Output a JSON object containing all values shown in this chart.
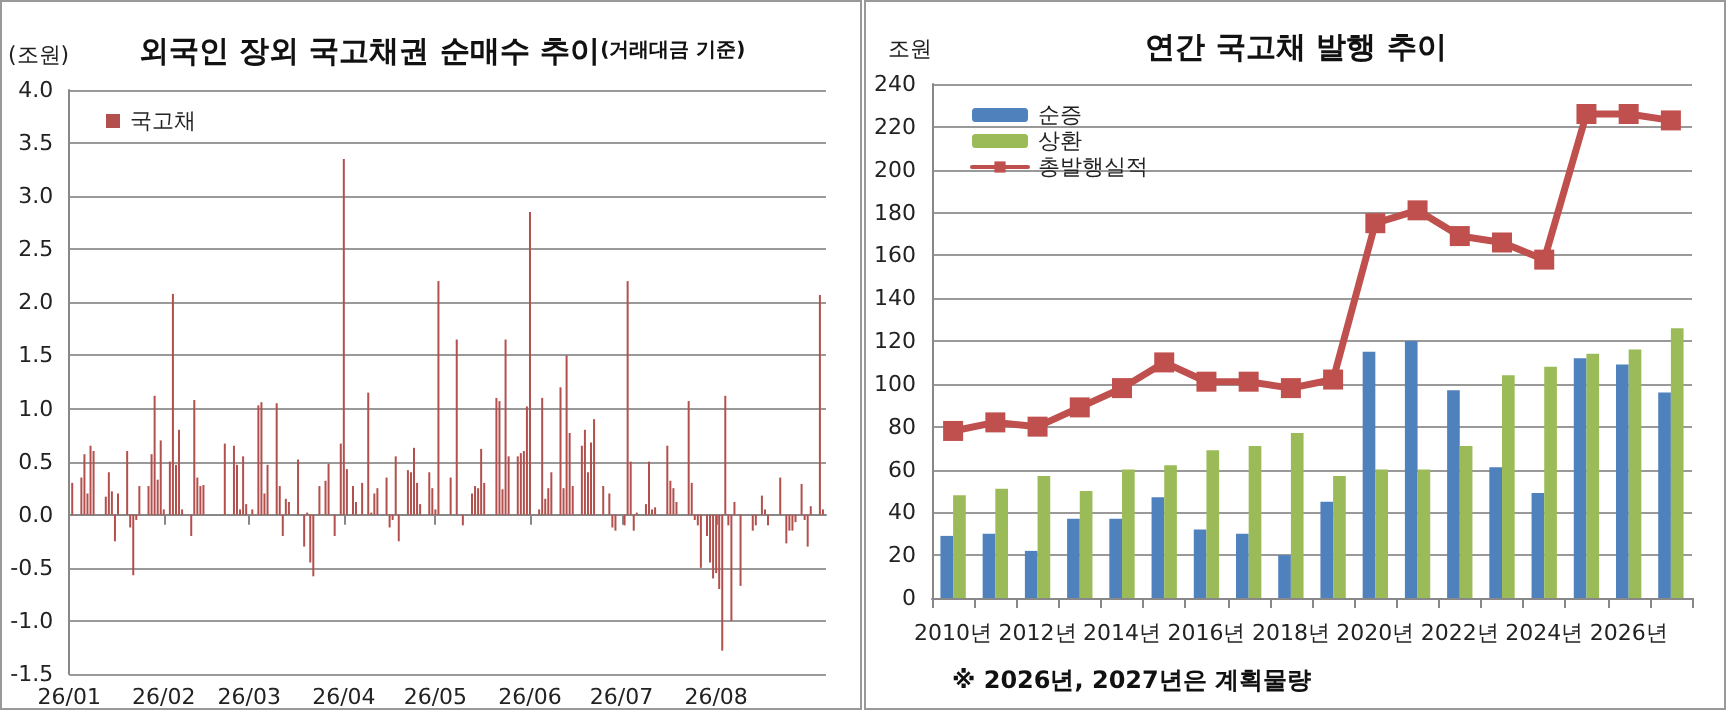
{
  "chart_data": [
    {
      "type": "bar",
      "title": "외국인 장외 국고채권 순매수 추이",
      "subtitle": "(거래대금 기준)",
      "ylabel": "(조원)",
      "x": [
        "2026-01-02",
        "2026-01-05",
        "2026-01-06",
        "2026-01-07",
        "2026-01-08",
        "2026-01-09",
        "2026-01-13",
        "2026-01-14",
        "2026-01-15",
        "2026-01-16",
        "2026-01-17",
        "2026-01-20",
        "2026-01-21",
        "2026-01-22",
        "2026-01-23",
        "2026-01-24",
        "2026-01-27",
        "2026-01-28",
        "2026-01-29",
        "2026-01-30",
        "2026-01-31",
        "2026-02-01",
        "2026-02-03",
        "2026-02-04",
        "2026-02-05",
        "2026-02-06",
        "2026-02-07",
        "2026-02-10",
        "2026-02-11",
        "2026-02-12",
        "2026-02-13",
        "2026-02-14",
        "2026-02-21",
        "2026-02-24",
        "2026-02-25",
        "2026-02-26",
        "2026-02-27",
        "2026-02-28",
        "2026-03-02",
        "2026-03-04",
        "2026-03-05",
        "2026-03-06",
        "2026-03-07",
        "2026-03-10",
        "2026-03-11",
        "2026-03-12",
        "2026-03-13",
        "2026-03-14",
        "2026-03-17",
        "2026-03-19",
        "2026-03-20",
        "2026-03-21",
        "2026-03-22",
        "2026-03-24",
        "2026-03-26",
        "2026-03-27",
        "2026-03-29",
        "2026-03-31",
        "2026-04-01",
        "2026-04-02",
        "2026-04-04",
        "2026-04-05",
        "2026-04-07",
        "2026-04-09",
        "2026-04-10",
        "2026-04-11",
        "2026-04-12",
        "2026-04-15",
        "2026-04-16",
        "2026-04-17",
        "2026-04-18",
        "2026-04-19",
        "2026-04-22",
        "2026-04-23",
        "2026-04-24",
        "2026-04-25",
        "2026-04-26",
        "2026-04-29",
        "2026-04-30",
        "2026-05-01",
        "2026-05-02",
        "2026-05-06",
        "2026-05-08",
        "2026-05-10",
        "2026-05-13",
        "2026-05-14",
        "2026-05-15",
        "2026-05-16",
        "2026-05-17",
        "2026-05-21",
        "2026-05-22",
        "2026-05-23",
        "2026-05-24",
        "2026-05-25",
        "2026-05-28",
        "2026-05-29",
        "2026-05-30",
        "2026-05-31",
        "2026-06-01",
        "2026-06-04",
        "2026-06-05",
        "2026-06-06",
        "2026-06-07",
        "2026-06-08",
        "2026-06-11",
        "2026-06-12",
        "2026-06-13",
        "2026-06-14",
        "2026-06-15",
        "2026-06-18",
        "2026-06-19",
        "2026-06-20",
        "2026-06-21",
        "2026-06-22",
        "2026-06-25",
        "2026-06-27",
        "2026-06-28",
        "2026-06-29",
        "2026-07-02",
        "2026-07-03",
        "2026-07-04",
        "2026-07-05",
        "2026-07-06",
        "2026-07-09",
        "2026-07-10",
        "2026-07-11",
        "2026-07-12",
        "2026-07-16",
        "2026-07-17",
        "2026-07-18",
        "2026-07-19",
        "2026-07-23",
        "2026-07-24",
        "2026-07-25",
        "2026-07-26",
        "2026-07-27",
        "2026-07-29",
        "2026-07-30",
        "2026-07-31",
        "2026-08-01",
        "2026-08-02",
        "2026-08-03",
        "2026-08-04",
        "2026-08-05",
        "2026-08-06",
        "2026-08-07",
        "2026-08-09",
        "2026-08-13",
        "2026-08-14",
        "2026-08-16",
        "2026-08-17",
        "2026-08-18",
        "2026-08-22",
        "2026-08-24",
        "2026-08-25",
        "2026-08-26",
        "2026-08-27",
        "2026-08-29",
        "2026-08-30",
        "2026-08-31",
        "2026-09-01",
        "2026-09-04",
        "2026-09-05"
      ],
      "series": [
        {
          "name": "국고채",
          "color": "#b3504d",
          "values": [
            0.3,
            0.35,
            0.57,
            0.2,
            0.65,
            0.6,
            0.17,
            0.4,
            0.22,
            -0.25,
            0.2,
            0.6,
            -0.12,
            -0.57,
            -0.05,
            0.27,
            0.27,
            0.57,
            1.12,
            0.33,
            0.7,
            0.05,
            0.5,
            2.08,
            0.47,
            0.8,
            0.05,
            -0.2,
            1.08,
            0.35,
            0.27,
            0.28,
            0.67,
            0.65,
            0.47,
            0.05,
            0.55,
            0.1,
            0.05,
            1.03,
            1.06,
            0.2,
            0.47,
            1.05,
            0.27,
            -0.2,
            0.15,
            0.12,
            0.52,
            -0.3,
            0.02,
            -0.45,
            -0.58,
            0.27,
            0.32,
            0.48,
            -0.2,
            0.67,
            3.35,
            0.43,
            0.27,
            0.12,
            0.3,
            1.15,
            0.02,
            0.2,
            0.25,
            0.35,
            -0.12,
            -0.05,
            0.55,
            -0.25,
            0.42,
            0.4,
            0.63,
            0.3,
            0.1,
            0.4,
            0.25,
            0.05,
            2.2,
            0.35,
            1.65,
            -0.1,
            0.2,
            0.27,
            0.25,
            0.62,
            0.3,
            1.1,
            1.07,
            0.24,
            1.65,
            0.55,
            0.55,
            0.58,
            0.6,
            1.02,
            2.85,
            0.05,
            1.1,
            0.15,
            0.25,
            0.4,
            1.2,
            0.25,
            1.5,
            0.77,
            0.27,
            0.65,
            0.8,
            0.4,
            0.68,
            0.9,
            0.27,
            0.2,
            -0.12,
            -0.15,
            -0.1,
            2.2,
            0.5,
            -0.15,
            0.02,
            0.1,
            0.5,
            0.05,
            0.07,
            0.65,
            0.32,
            0.25,
            0.12,
            1.07,
            0.3,
            -0.05,
            -0.1,
            -0.5,
            -0.2,
            -0.45,
            -0.6,
            -0.55,
            -0.7,
            -1.28,
            1.12,
            -0.1,
            -1.0,
            0.12,
            -0.67,
            -0.15,
            -0.1,
            0.18,
            0.05,
            -0.1,
            0.35,
            -0.27,
            -0.15,
            -0.15,
            -0.07,
            0.29,
            -0.05,
            -0.3,
            0.08,
            2.07,
            0.05
          ]
        }
      ],
      "xlim": [
        "2026-01-01",
        "2026-09-06"
      ],
      "xticks": [
        {
          "value": "2026-01-01",
          "label": "26/01"
        },
        {
          "value": "2026-02-01",
          "label": "26/02"
        },
        {
          "value": "2026-03-01",
          "label": "26/03"
        },
        {
          "value": "2026-04-01",
          "label": "26/04"
        },
        {
          "value": "2026-05-01",
          "label": "26/05"
        },
        {
          "value": "2026-06-01",
          "label": "26/06"
        },
        {
          "value": "2026-07-01",
          "label": "26/07"
        },
        {
          "value": "2026-08-01",
          "label": "26/08"
        }
      ],
      "ylim": [
        -1.5,
        4
      ],
      "yticks": [
        -1.5,
        {
          "value": -1,
          "label": "-1.0"
        },
        -0.5,
        {
          "value": 0,
          "label": "0.0"
        },
        0.5,
        {
          "value": 1,
          "label": "1.0"
        },
        1.5,
        {
          "value": 2,
          "label": "2.0"
        },
        2.5,
        {
          "value": 3,
          "label": "3.0"
        },
        3.5,
        {
          "value": 4,
          "label": "4.0"
        }
      ],
      "grid": "y",
      "legend": "top left"
    },
    {
      "type": "bar",
      "title": "연간 국고채 발행 추이",
      "ylabel": "조원",
      "categories": [
        "2010년",
        null,
        "2012년",
        null,
        "2014년",
        null,
        "2016년",
        null,
        "2018년",
        null,
        "2020년",
        null,
        "2022년",
        null,
        "2024년",
        null,
        "2026년",
        null
      ],
      "series": [
        {
          "name": "순증",
          "color": "#4f81bd",
          "values": [
            29,
            30,
            22,
            37,
            37,
            47,
            32,
            30,
            20,
            45,
            115,
            120,
            97,
            61,
            49,
            112,
            109,
            96
          ]
        },
        {
          "name": "상환",
          "color": "#9bbb59",
          "values": [
            48,
            51,
            57,
            50,
            60,
            62,
            69,
            71,
            77,
            57,
            60,
            60,
            71,
            104,
            108,
            114,
            116,
            126
          ]
        },
        {
          "name": "총발행실적",
          "type": "line",
          "marker": "square",
          "color": "#c0504d",
          "values": [
            78,
            82,
            80,
            89,
            98,
            110,
            101,
            101,
            98,
            102,
            175,
            181,
            169,
            166,
            158,
            226,
            226,
            223
          ]
        }
      ],
      "ylim": [
        0,
        240
      ],
      "yticks": [
        0,
        20,
        40,
        60,
        80,
        100,
        120,
        140,
        160,
        180,
        200,
        220,
        240
      ],
      "grid": "y",
      "legend": "top left",
      "annotations": [
        "※ 2026년, 2027년은 계획물량"
      ]
    }
  ]
}
